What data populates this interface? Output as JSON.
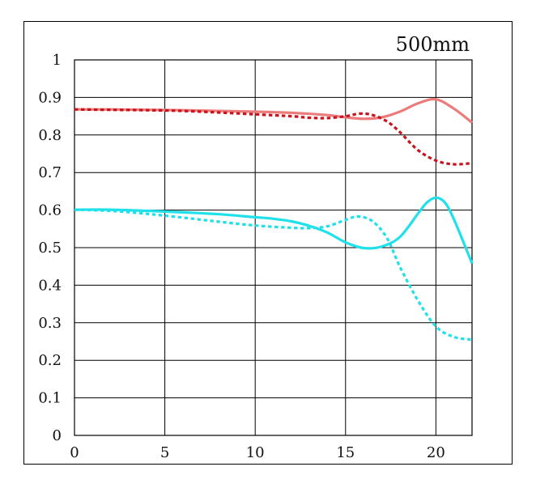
{
  "chart_data": {
    "type": "line",
    "title": "500mm",
    "xlabel": "",
    "ylabel": "",
    "xlim": [
      0,
      22
    ],
    "ylim": [
      0,
      1
    ],
    "xticks": [
      0,
      5,
      10,
      15,
      20
    ],
    "xtick_labels": [
      "0",
      "5",
      "10",
      "15",
      "20"
    ],
    "yticks": [
      0,
      0.1,
      0.2,
      0.3,
      0.4,
      0.5,
      0.6,
      0.7,
      0.8,
      0.9,
      1
    ],
    "ytick_labels": [
      "0",
      "0.1",
      "0.2",
      "0.3",
      "0.4",
      "0.5",
      "0.6",
      "0.7",
      "0.8",
      "0.9",
      "1"
    ],
    "grid": true,
    "series": [
      {
        "name": "red-solid",
        "color": "#ec7b7b",
        "style": "solid",
        "x": [
          0,
          2,
          4,
          6,
          8,
          10,
          12,
          14,
          15,
          16,
          17,
          18,
          19,
          20,
          21,
          22
        ],
        "y": [
          0.868,
          0.868,
          0.867,
          0.866,
          0.864,
          0.862,
          0.859,
          0.853,
          0.847,
          0.843,
          0.847,
          0.862,
          0.884,
          0.895,
          0.87,
          0.833
        ]
      },
      {
        "name": "red-dotted",
        "color": "#c8141e",
        "style": "dotted",
        "x": [
          0,
          2,
          4,
          6,
          8,
          10,
          12,
          13,
          14,
          15,
          15.8,
          16.5,
          17.3,
          18,
          19,
          20,
          21,
          22
        ],
        "y": [
          0.868,
          0.867,
          0.866,
          0.864,
          0.86,
          0.855,
          0.85,
          0.846,
          0.845,
          0.85,
          0.857,
          0.853,
          0.836,
          0.808,
          0.76,
          0.732,
          0.722,
          0.725
        ]
      },
      {
        "name": "cyan-solid",
        "color": "#20e0ea",
        "style": "solid",
        "x": [
          0,
          2,
          4,
          6,
          8,
          10,
          11,
          12,
          13,
          14,
          15,
          16,
          17,
          18,
          19,
          19.5,
          20,
          20.5,
          21,
          22
        ],
        "y": [
          0.601,
          0.601,
          0.598,
          0.594,
          0.589,
          0.581,
          0.577,
          0.57,
          0.558,
          0.54,
          0.514,
          0.499,
          0.503,
          0.528,
          0.59,
          0.62,
          0.633,
          0.62,
          0.575,
          0.458
        ]
      },
      {
        "name": "cyan-dotted",
        "color": "#20e0ea",
        "style": "dotted",
        "x": [
          0,
          2,
          4,
          6,
          8,
          10,
          12,
          13,
          14,
          15,
          15.7,
          16.5,
          17.3,
          18,
          19,
          20,
          21,
          22
        ],
        "y": [
          0.601,
          0.598,
          0.59,
          0.58,
          0.569,
          0.559,
          0.553,
          0.552,
          0.557,
          0.574,
          0.583,
          0.57,
          0.525,
          0.45,
          0.36,
          0.29,
          0.262,
          0.255
        ]
      }
    ]
  }
}
